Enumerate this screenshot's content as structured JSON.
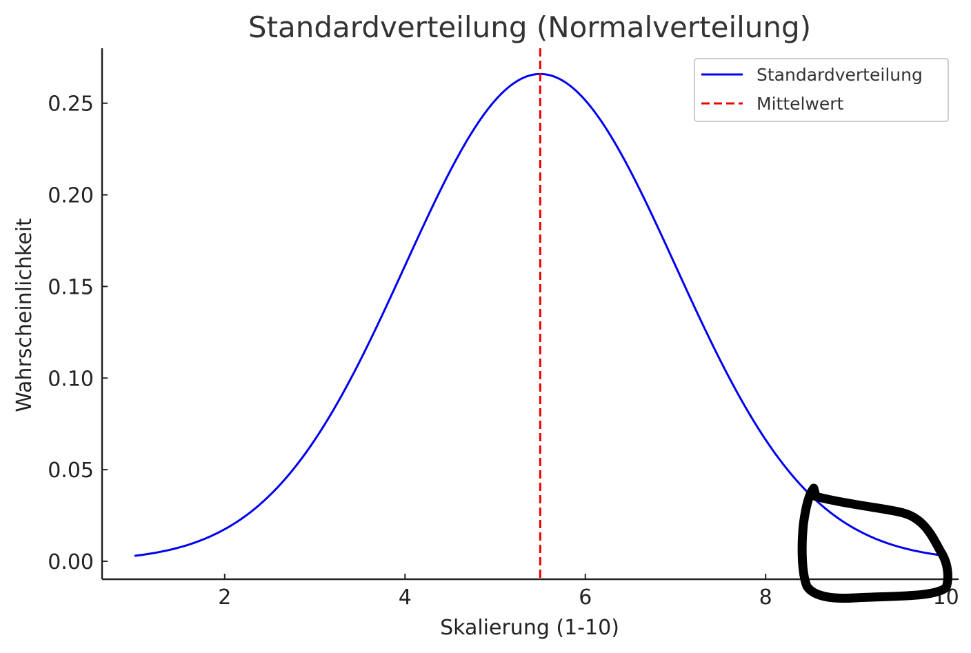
{
  "chart_data": {
    "type": "line",
    "title": "Standardverteilung (Normalverteilung)",
    "xlabel": "Skalierung (1-10)",
    "ylabel": "Wahrscheinlichkeit",
    "xlim": [
      0.64,
      10.14
    ],
    "ylim": [
      -0.0098,
      0.28
    ],
    "x_ticks": [
      2,
      4,
      6,
      8,
      10
    ],
    "y_ticks": [
      0.0,
      0.05,
      0.1,
      0.15,
      0.2,
      0.25
    ],
    "x_tick_labels": [
      "2",
      "4",
      "6",
      "8",
      "10"
    ],
    "y_tick_labels": [
      "0.00",
      "0.05",
      "0.10",
      "0.15",
      "0.20",
      "0.25"
    ],
    "grid": false,
    "legend_position": "top-right",
    "series": [
      {
        "name": "Standardverteilung",
        "color": "#0000ee",
        "style": "solid",
        "distribution": "normal",
        "mean": 5.5,
        "std": 1.5,
        "x_range": [
          1,
          10
        ]
      },
      {
        "name": "Mittelwert",
        "color": "#ee0000",
        "style": "dashed",
        "kind": "vertical-line",
        "x": 5.5
      }
    ],
    "annotations": [
      {
        "kind": "hand-drawn-loop",
        "color": "#000000",
        "region": "right tail of the curve, around x = 9–10"
      }
    ]
  }
}
